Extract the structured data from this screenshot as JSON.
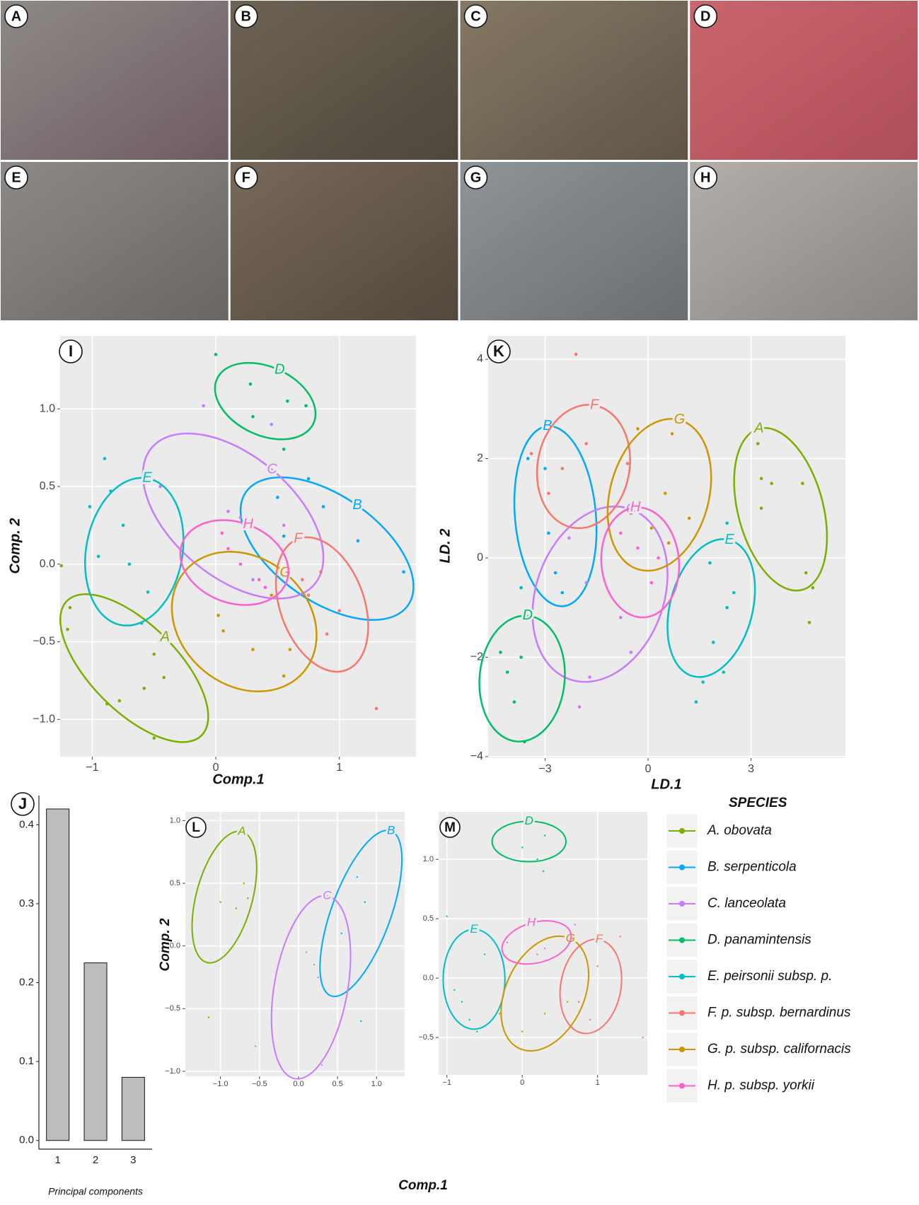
{
  "photos": {
    "labels": [
      "A",
      "B",
      "C",
      "D",
      "E",
      "F",
      "G",
      "H"
    ]
  },
  "legend": {
    "title": "SPECIES",
    "items": [
      {
        "name": "A. obovata",
        "color": "#7CAE00"
      },
      {
        "name": "B. serpenticola",
        "color": "#00A9FF"
      },
      {
        "name": "C. lanceolata",
        "color": "#C77CFF"
      },
      {
        "name": "D. panamintensis",
        "color": "#00BE67"
      },
      {
        "name": "E. peirsonii subsp. p.",
        "color": "#00BFC4"
      },
      {
        "name": "F. p. subsp. bernardinus",
        "color": "#F8766D"
      },
      {
        "name": "G. p. subsp. californacis",
        "color": "#CD9600"
      },
      {
        "name": "H. p. subsp. yorkii",
        "color": "#FF61CC"
      }
    ]
  },
  "chart_data": [
    {
      "type": "scatter",
      "panel": "I",
      "xlabel": "Comp.1",
      "ylabel": "Comp. 2",
      "grid": true,
      "xlim": [
        -1.26,
        1.62
      ],
      "ylim": [
        -1.24,
        1.47
      ],
      "xticks": [
        {
          "value": -1,
          "label": "−1"
        },
        0,
        1
      ],
      "yticks": [
        {
          "value": -1,
          "label": "−1.0"
        },
        {
          "value": -0.5,
          "label": "−0.5"
        },
        {
          "value": 0,
          "label": "0.0"
        },
        0.5,
        {
          "value": 1,
          "label": "1.0"
        }
      ],
      "series": [
        {
          "label": "A",
          "color": "#7CAE00",
          "x": [
            -1.25,
            -1.2,
            -1.18,
            -0.88,
            -0.58,
            -0.5,
            -0.42,
            -0.5,
            -0.78
          ],
          "y": [
            -0.01,
            -0.42,
            -0.28,
            -0.9,
            -0.8,
            -0.58,
            -0.73,
            -1.12,
            -0.88
          ],
          "ellipse": {
            "center": [
              -0.66,
              -0.67
            ],
            "rx": 0.77,
            "ry": 0.28,
            "angle": 45
          }
        },
        {
          "label": "B",
          "color": "#00A9FF",
          "x": [
            0.75,
            0.87,
            1.52,
            0.5,
            1.15,
            0.55
          ],
          "y": [
            0.55,
            0.37,
            -0.05,
            0.43,
            0.15,
            0.18
          ],
          "ellipse": {
            "center": [
              0.9,
              0.1
            ],
            "rx": 0.8,
            "ry": 0.34,
            "angle": 35
          }
        },
        {
          "label": "C",
          "color": "#C77CFF",
          "x": [
            -0.1,
            0.45,
            -0.45,
            0.1,
            0.2,
            0.55,
            0.3
          ],
          "y": [
            1.02,
            0.9,
            0.5,
            0.34,
            0.3,
            0.25,
            -0.1
          ],
          "ellipse": {
            "center": [
              0.14,
              0.31
            ],
            "rx": 0.86,
            "ry": 0.39,
            "angle": 40
          }
        },
        {
          "label": "D",
          "color": "#00BE67",
          "x": [
            0.0,
            0.28,
            0.58,
            0.73,
            0.3,
            0.55
          ],
          "y": [
            1.35,
            1.16,
            1.05,
            1.02,
            0.95,
            0.74
          ],
          "ellipse": {
            "center": [
              0.4,
              1.05
            ],
            "rx": 0.43,
            "ry": 0.22,
            "angle": 25
          }
        },
        {
          "label": "E",
          "color": "#00BFC4",
          "x": [
            -1.02,
            -0.9,
            -0.85,
            -0.95,
            -0.7,
            -0.6,
            -0.55,
            -0.75
          ],
          "y": [
            0.37,
            0.68,
            0.47,
            0.05,
            0.0,
            -0.38,
            -0.18,
            0.25
          ],
          "ellipse": {
            "center": [
              -0.66,
              0.08
            ],
            "rx": 0.39,
            "ry": 0.48,
            "angle": 10
          }
        },
        {
          "label": "F",
          "color": "#F8766D",
          "x": [
            1.3,
            0.75,
            1.0,
            0.9,
            0.7,
            0.85
          ],
          "y": [
            -0.93,
            -0.2,
            -0.3,
            -0.45,
            -0.1,
            -0.05
          ],
          "ellipse": {
            "center": [
              0.86,
              -0.26
            ],
            "rx": 0.34,
            "ry": 0.45,
            "angle": -20
          }
        },
        {
          "label": "G",
          "color": "#CD9600",
          "x": [
            0.02,
            0.06,
            0.3,
            0.55,
            0.6,
            0.45
          ],
          "y": [
            -0.33,
            -0.43,
            -0.55,
            -0.72,
            -0.55,
            -0.2
          ],
          "ellipse": {
            "center": [
              0.23,
              -0.37
            ],
            "rx": 0.63,
            "ry": 0.41,
            "angle": 40
          }
        },
        {
          "label": "H",
          "color": "#FF61CC",
          "x": [
            0.05,
            0.2,
            0.35,
            0.4,
            0.1
          ],
          "y": [
            0.2,
            0.0,
            -0.1,
            -0.15,
            0.1
          ],
          "ellipse": {
            "center": [
              0.15,
              0.01
            ],
            "rx": 0.45,
            "ry": 0.26,
            "angle": 20
          }
        }
      ]
    },
    {
      "type": "scatter",
      "panel": "K",
      "xlabel": "LD.1",
      "ylabel": "LD. 2",
      "grid": true,
      "xlim": [
        -4.66,
        5.75
      ],
      "ylim": [
        -4.03,
        4.47
      ],
      "xticks": [
        {
          "value": -3,
          "label": "−3"
        },
        0,
        3
      ],
      "yticks": [
        {
          "value": -4,
          "label": "−4"
        },
        {
          "value": -2,
          "label": "−2"
        },
        0,
        2,
        4
      ],
      "series": [
        {
          "label": "A",
          "color": "#7CAE00",
          "x": [
            3.2,
            3.3,
            3.6,
            4.5,
            3.3,
            4.6,
            4.8,
            4.7
          ],
          "y": [
            2.3,
            1.6,
            1.5,
            1.5,
            1.0,
            -0.3,
            -0.6,
            -1.3
          ],
          "ellipse": {
            "center": [
              3.86,
              0.98
            ],
            "rx": 1.24,
            "ry": 1.68,
            "angle": -15
          }
        },
        {
          "label": "B",
          "color": "#00A9FF",
          "x": [
            -3.5,
            -3.0,
            -2.9,
            -2.5,
            -3.7,
            -2.7
          ],
          "y": [
            2.0,
            1.8,
            0.5,
            -0.7,
            -0.6,
            -0.3
          ],
          "ellipse": {
            "center": [
              -2.7,
              0.84
            ],
            "rx": 1.18,
            "ry": 1.82,
            "angle": -5
          }
        },
        {
          "label": "C",
          "color": "#C77CFF",
          "x": [
            -2.0,
            -1.7,
            -0.5,
            -1.8,
            -2.3,
            -0.8
          ],
          "y": [
            -3.0,
            -2.4,
            -1.9,
            -0.5,
            0.4,
            -1.2
          ],
          "ellipse": {
            "center": [
              -1.4,
              -0.73
            ],
            "rx": 1.86,
            "ry": 1.82,
            "angle": 20
          }
        },
        {
          "label": "D",
          "color": "#00BE67",
          "x": [
            -4.3,
            -4.1,
            -3.9,
            -3.6,
            -3.7
          ],
          "y": [
            -1.9,
            -2.3,
            -2.9,
            -3.7,
            -2.0
          ],
          "ellipse": {
            "center": [
              -3.67,
              -2.43
            ],
            "rx": 1.24,
            "ry": 1.27,
            "angle": 5
          }
        },
        {
          "label": "E",
          "color": "#00BFC4",
          "x": [
            1.4,
            1.6,
            1.9,
            2.2,
            2.3,
            2.5,
            1.8,
            2.3
          ],
          "y": [
            -2.9,
            -2.5,
            -1.7,
            -2.3,
            -1.0,
            -0.7,
            -0.1,
            0.7
          ],
          "ellipse": {
            "center": [
              1.84,
              -1.01
            ],
            "rx": 1.2,
            "ry": 1.42,
            "angle": 15
          }
        },
        {
          "label": "F",
          "color": "#F8766D",
          "x": [
            -2.1,
            -3.4,
            -2.5,
            -1.8,
            -0.6,
            -2.9
          ],
          "y": [
            4.1,
            2.1,
            1.8,
            2.3,
            1.9,
            1.3
          ],
          "ellipse": {
            "center": [
              -1.88,
              1.84
            ],
            "rx": 1.34,
            "ry": 1.25,
            "angle": 10
          }
        },
        {
          "label": "G",
          "color": "#CD9600",
          "x": [
            -0.3,
            0.7,
            0.5,
            0.1,
            0.6,
            1.2
          ],
          "y": [
            2.6,
            2.5,
            1.3,
            0.6,
            0.3,
            0.8
          ],
          "ellipse": {
            "center": [
              0.33,
              1.27
            ],
            "rx": 1.44,
            "ry": 1.56,
            "angle": 15
          }
        },
        {
          "label": "H",
          "color": "#FF61CC",
          "x": [
            -0.8,
            -0.3,
            0.1,
            -0.5,
            0.3
          ],
          "y": [
            0.5,
            0.2,
            -0.5,
            0.9,
            0.0
          ],
          "ellipse": {
            "center": [
              -0.23,
              -0.09
            ],
            "rx": 1.13,
            "ry": 1.11,
            "angle": -5
          }
        }
      ]
    },
    {
      "type": "bar",
      "panel": "J",
      "xlabel": "Principal components",
      "color": "#bdbdbd",
      "categories": [
        "1",
        "2",
        "3"
      ],
      "values": [
        0.42,
        0.225,
        0.08
      ],
      "ylim": [
        -0.011,
        0.437
      ],
      "yticks": [
        {
          "value": 0,
          "label": "0.0"
        },
        0.1,
        0.2,
        0.3,
        0.4
      ]
    },
    {
      "type": "scatter",
      "panel": "L",
      "xlabel": "Comp.1",
      "ylabel": "Comp. 2",
      "grid": true,
      "xlim": [
        -1.45,
        1.36
      ],
      "ylim": [
        -1.04,
        1.07
      ],
      "xticks": [
        {
          "value": -1,
          "label": "−1.0"
        },
        {
          "value": -0.5,
          "label": "−0.5"
        },
        {
          "value": 0,
          "label": "0.0"
        },
        0.5,
        {
          "value": 1,
          "label": "1.0"
        }
      ],
      "yticks": [
        {
          "value": -1,
          "label": "−1.0"
        },
        {
          "value": -0.5,
          "label": "−0.5"
        },
        {
          "value": 0,
          "label": "0.0"
        },
        0.5,
        {
          "value": 1,
          "label": "1.0"
        }
      ],
      "series": [
        {
          "label": "A",
          "color": "#7CAE00",
          "x": [
            -1.15,
            -1.0,
            -0.7,
            -0.65,
            -0.8
          ],
          "y": [
            -0.57,
            0.35,
            0.5,
            0.38,
            0.3
          ],
          "ellipse": {
            "center": [
              -0.95,
              0.39
            ],
            "rx": 0.36,
            "ry": 0.54,
            "angle": 15
          }
        },
        {
          "label": "B",
          "color": "#00A9FF",
          "x": [
            0.75,
            0.85,
            0.8,
            0.55
          ],
          "y": [
            0.55,
            0.35,
            -0.6,
            0.1
          ],
          "ellipse": {
            "center": [
              0.8,
              0.26
            ],
            "rx": 0.38,
            "ry": 0.7,
            "angle": 20
          }
        },
        {
          "label": "C",
          "color": "#C77CFF",
          "x": [
            0.3,
            0.1,
            0.25,
            0.2,
            -0.55
          ],
          "y": [
            -0.95,
            -0.05,
            -0.25,
            -0.15,
            -0.8
          ],
          "ellipse": {
            "center": [
              0.16,
              -0.33
            ],
            "rx": 0.47,
            "ry": 0.74,
            "angle": 10
          }
        }
      ]
    },
    {
      "type": "scatter",
      "panel": "M",
      "grid": true,
      "xlim": [
        -1.11,
        1.66
      ],
      "ylim": [
        -0.815,
        1.4
      ],
      "xticks": [
        {
          "value": -1,
          "label": "−1"
        },
        0,
        1
      ],
      "yticks": [
        {
          "value": -0.5,
          "label": "−0.5"
        },
        {
          "value": 0,
          "label": "0.0"
        },
        0.5,
        {
          "value": 1,
          "label": "1.0"
        }
      ],
      "series": [
        {
          "label": "D",
          "color": "#00BE67",
          "x": [
            0.0,
            0.3,
            0.2,
            0.28
          ],
          "y": [
            1.1,
            1.2,
            1.0,
            0.9
          ],
          "ellipse": {
            "center": [
              0.09,
              1.15
            ],
            "rx": 0.49,
            "ry": 0.17,
            "angle": 0
          }
        },
        {
          "label": "E",
          "color": "#00BFC4",
          "x": [
            -1.0,
            -0.8,
            -0.7,
            -0.6,
            -0.9,
            -0.5
          ],
          "y": [
            0.52,
            -0.2,
            -0.35,
            -0.45,
            -0.1,
            0.2
          ],
          "ellipse": {
            "center": [
              -0.64,
              -0.01
            ],
            "rx": 0.41,
            "ry": 0.42,
            "angle": 0
          }
        },
        {
          "label": "F",
          "color": "#F8766D",
          "x": [
            1.6,
            1.3,
            0.9,
            0.75,
            1.0
          ],
          "y": [
            -0.5,
            0.35,
            -0.35,
            -0.2,
            0.1
          ],
          "ellipse": {
            "center": [
              0.91,
              -0.07
            ],
            "rx": 0.4,
            "ry": 0.4,
            "angle": 10
          }
        },
        {
          "label": "G",
          "color": "#CD9600",
          "x": [
            0.0,
            0.3,
            0.6,
            -0.3
          ],
          "y": [
            -0.45,
            -0.3,
            -0.2,
            -0.3
          ],
          "ellipse": {
            "center": [
              0.3,
              -0.13
            ],
            "rx": 0.52,
            "ry": 0.51,
            "angle": 25
          }
        },
        {
          "label": "H",
          "color": "#FF61CC",
          "x": [
            0.3,
            0.2,
            -0.2,
            0.7
          ],
          "y": [
            0.25,
            0.2,
            0.3,
            0.45
          ],
          "ellipse": {
            "center": [
              0.19,
              0.3
            ],
            "rx": 0.47,
            "ry": 0.17,
            "angle": -15
          }
        }
      ]
    }
  ]
}
